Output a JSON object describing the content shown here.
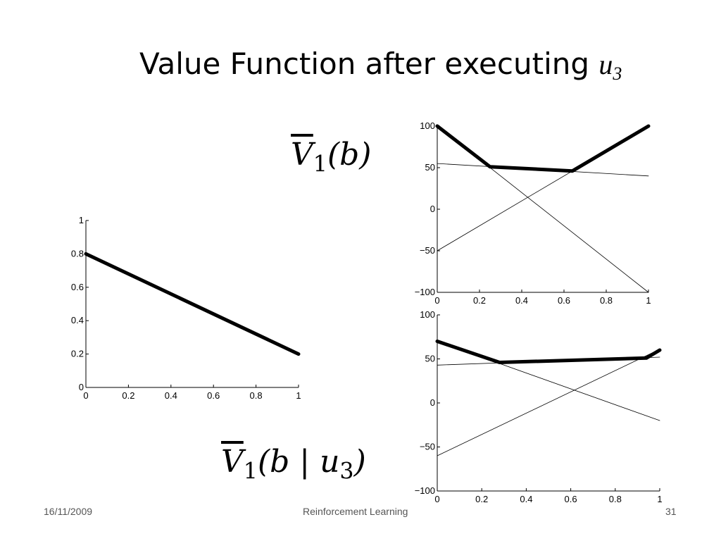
{
  "slide": {
    "title_text": "Value Function after executing ",
    "title_var": "u",
    "title_var_sub": "3",
    "formula_top": {
      "v": "V",
      "sub": "1",
      "rest": "(b)"
    },
    "formula_bottom": {
      "v": "V",
      "sub": "1",
      "open": "(b | ",
      "u": "u",
      "usub": "3",
      "close": ")"
    },
    "footer_date": "16/11/2009",
    "footer_center": "Reinforcement Learning",
    "footer_page": "31"
  },
  "chart_data": [
    {
      "type": "line",
      "xlim": [
        0,
        1
      ],
      "ylim": [
        0,
        1
      ],
      "xticks": [
        "0",
        "0.2",
        "0.4",
        "0.6",
        "0.8",
        "1"
      ],
      "yticks": [
        "0",
        "0.2",
        "0.4",
        "0.6",
        "0.8",
        "1"
      ],
      "series": [
        {
          "x": [
            0,
            1
          ],
          "y": [
            0.8,
            0.2
          ],
          "style": "thick"
        }
      ]
    },
    {
      "type": "line",
      "xlim": [
        0,
        1
      ],
      "ylim": [
        -100,
        100
      ],
      "xticks": [
        "0",
        "0.2",
        "0.4",
        "0.6",
        "0.8",
        "1"
      ],
      "yticks": [
        "−100",
        "−50",
        "0",
        "50",
        "100"
      ],
      "series": [
        {
          "x": [
            0,
            1
          ],
          "y": [
            100,
            -100
          ],
          "style": "thin"
        },
        {
          "x": [
            0,
            1
          ],
          "y": [
            -50,
            100
          ],
          "style": "thin"
        },
        {
          "x": [
            0,
            1
          ],
          "y": [
            55,
            40
          ],
          "style": "thin"
        },
        {
          "x": [
            0,
            0.25,
            0.64,
            1
          ],
          "y": [
            100,
            51,
            46,
            100
          ],
          "style": "thick"
        }
      ]
    },
    {
      "type": "line",
      "xlim": [
        0,
        1
      ],
      "ylim": [
        -100,
        100
      ],
      "xticks": [
        "0",
        "0.2",
        "0.4",
        "0.6",
        "0.8",
        "1"
      ],
      "yticks": [
        "−100",
        "−50",
        "0",
        "50",
        "100"
      ],
      "series": [
        {
          "x": [
            0,
            1
          ],
          "y": [
            70,
            -20
          ],
          "style": "thin"
        },
        {
          "x": [
            0,
            1
          ],
          "y": [
            -60,
            61
          ],
          "style": "thin"
        },
        {
          "x": [
            0,
            1
          ],
          "y": [
            43,
            52
          ],
          "style": "thin"
        },
        {
          "x": [
            0,
            0.28,
            0.94,
            1
          ],
          "y": [
            70,
            46,
            51,
            60
          ],
          "style": "thick"
        }
      ]
    }
  ]
}
